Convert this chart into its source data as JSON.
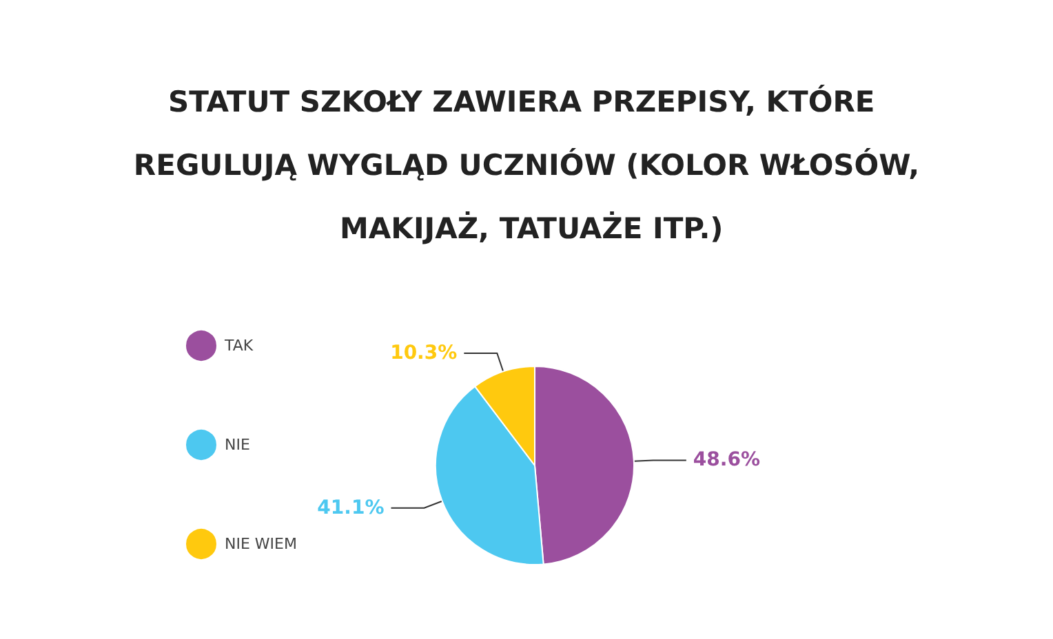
{
  "chart_data": {
    "type": "pie",
    "title": "STATUT SZKOŁY ZAWIERA PRZEPISY, KTÓRE REGULUJĄ WYGLĄD UCZNIÓW (KOLOR WŁOSÓW, MAKIJAŻ, TATUAŻE ITP.)",
    "categories": [
      "TAK",
      "NIE",
      "NIE WIEM"
    ],
    "values": [
      48.6,
      41.1,
      10.3
    ],
    "colors": [
      "#9b4f9e",
      "#4dc8f0",
      "#ffc90e"
    ],
    "value_labels": [
      "48.6%",
      "41.1%",
      "10.3%"
    ],
    "legend": "left"
  }
}
